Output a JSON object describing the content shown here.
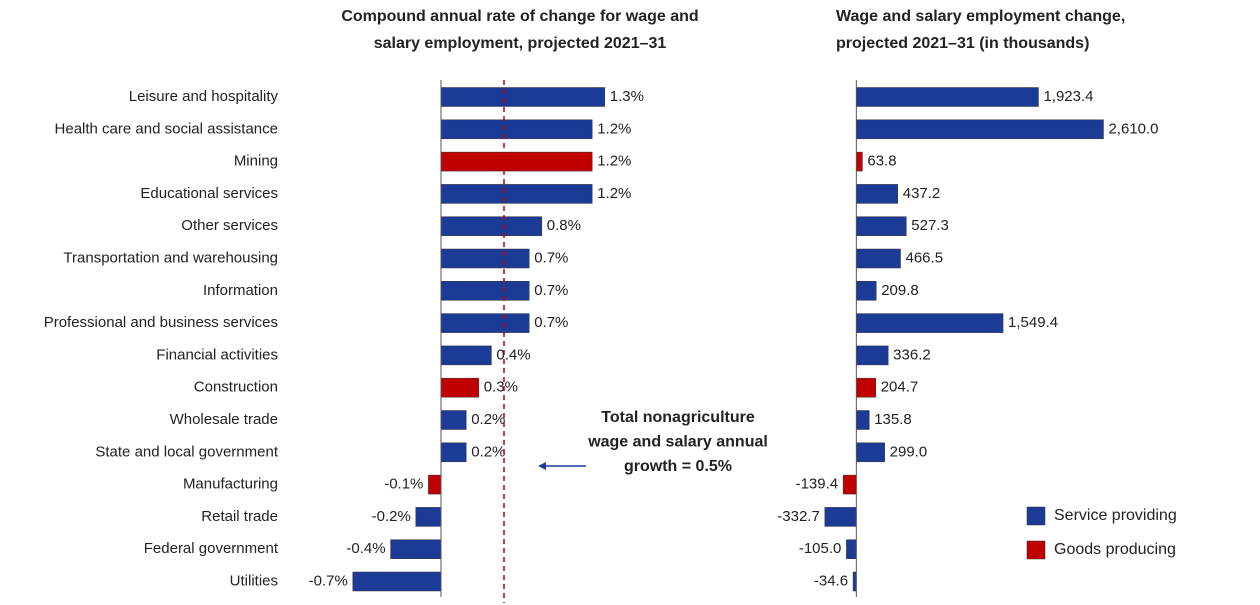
{
  "chart_data": [
    {
      "type": "hbar",
      "title": [
        "Compound annual rate of change for wage and",
        "salary employment, projected 2021–31"
      ],
      "categories": [
        "Leisure and hospitality",
        "Health care and social assistance",
        "Mining",
        "Educational services",
        "Other services",
        "Transportation and warehousing",
        "Information",
        "Professional and business services",
        "Financial activities",
        "Construction",
        "Wholesale trade",
        "State and local government",
        "Manufacturing",
        "Retail trade",
        "Federal government",
        "Utilities"
      ],
      "values": [
        1.3,
        1.2,
        1.2,
        1.2,
        0.8,
        0.7,
        0.7,
        0.7,
        0.4,
        0.3,
        0.2,
        0.2,
        -0.1,
        -0.2,
        -0.4,
        -0.7
      ],
      "value_labels": [
        "1.3%",
        "1.2%",
        "1.2%",
        "1.2%",
        "0.8%",
        "0.7%",
        "0.7%",
        "0.7%",
        "0.4%",
        "0.3%",
        "0.2%",
        "0.2%",
        "-0.1%",
        "-0.2%",
        "-0.4%",
        "-0.7%"
      ],
      "colors": [
        "#1c3b96",
        "#1c3b96",
        "#c00000",
        "#1c3b96",
        "#1c3b96",
        "#1c3b96",
        "#1c3b96",
        "#1c3b96",
        "#1c3b96",
        "#c00000",
        "#1c3b96",
        "#1c3b96",
        "#c00000",
        "#1c3b96",
        "#1c3b96",
        "#1c3b96"
      ],
      "xlim": [
        -1,
        1.5
      ],
      "annotation": {
        "text": [
          "Total nonagriculture",
          "wage and salary annual",
          "growth = 0.5%"
        ],
        "value": 0.5,
        "color": "#c00000"
      }
    },
    {
      "type": "hbar",
      "title": [
        "Wage and salary employment change,",
        "projected 2021–31 (in thousands)"
      ],
      "values": [
        1923.4,
        2610.0,
        63.8,
        437.2,
        527.3,
        466.5,
        209.8,
        1549.4,
        336.2,
        204.7,
        135.8,
        299.0,
        -139.4,
        -332.7,
        -105.0,
        -34.6
      ],
      "value_labels": [
        "1,923.4",
        "2,610.0",
        "63.8",
        "437.2",
        "527.3",
        "466.5",
        "209.8",
        "1,549.4",
        "336.2",
        "204.7",
        "135.8",
        "299.0",
        "-139.4",
        "-332.7",
        "-105.0",
        "-34.6"
      ],
      "colors": [
        "#1c3b96",
        "#1c3b96",
        "#c00000",
        "#1c3b96",
        "#1c3b96",
        "#1c3b96",
        "#1c3b96",
        "#1c3b96",
        "#1c3b96",
        "#c00000",
        "#1c3b96",
        "#1c3b96",
        "#c00000",
        "#1c3b96",
        "#1c3b96",
        "#1c3b96"
      ],
      "xlim": [
        -500,
        2700
      ],
      "legend": [
        {
          "name": "Service providing",
          "color": "#1c3b96"
        },
        {
          "name": "Goods producing",
          "color": "#c00000"
        }
      ]
    }
  ]
}
